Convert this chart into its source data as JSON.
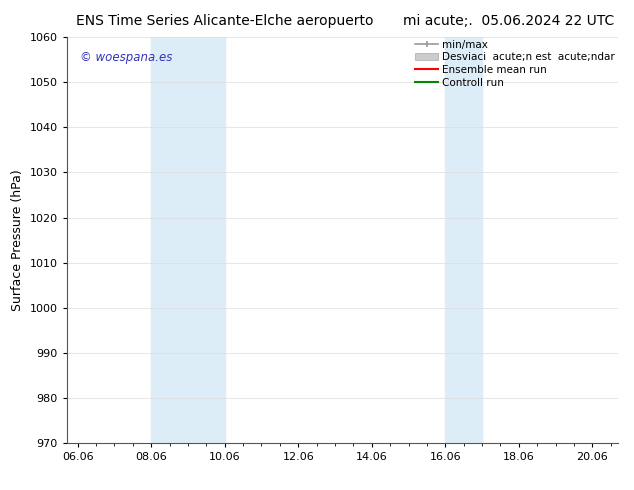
{
  "title_left": "ENS Time Series Alicante-Elche aeropuerto",
  "title_right": "mi  acute;.  05.06.2024 22 UTC",
  "ylabel": "Surface Pressure (hPa)",
  "ylim": [
    970,
    1060
  ],
  "yticks": [
    970,
    980,
    990,
    1000,
    1010,
    1020,
    1030,
    1040,
    1050,
    1060
  ],
  "xlabel_ticks": [
    "06.06",
    "08.06",
    "10.06",
    "12.06",
    "14.06",
    "16.06",
    "18.06",
    "20.06"
  ],
  "xlabel_vals": [
    0,
    2,
    4,
    6,
    8,
    10,
    12,
    14
  ],
  "xlim": [
    -0.3,
    14.7
  ],
  "shaded_bands": [
    {
      "x_start": 2.0,
      "x_end": 4.0
    },
    {
      "x_start": 10.0,
      "x_end": 11.0
    }
  ],
  "shade_color": "#ddedf8",
  "watermark_text": "© woespana.es",
  "watermark_color": "#3333bb",
  "legend_label_minmax": "min/max",
  "legend_label_std": "Desviaci  acute;n est  acute;ndar",
  "legend_label_ensemble": "Ensemble mean run",
  "legend_label_control": "Controll run",
  "legend_color_minmax": "#999999",
  "legend_color_std": "#cccccc",
  "legend_color_ensemble": "#ff0000",
  "legend_color_control": "#008800",
  "bg_color": "#ffffff",
  "axes_bg": "#ffffff",
  "title_fontsize": 10,
  "label_fontsize": 9,
  "tick_fontsize": 8,
  "legend_fontsize": 7.5,
  "watermark_fontsize": 8.5
}
